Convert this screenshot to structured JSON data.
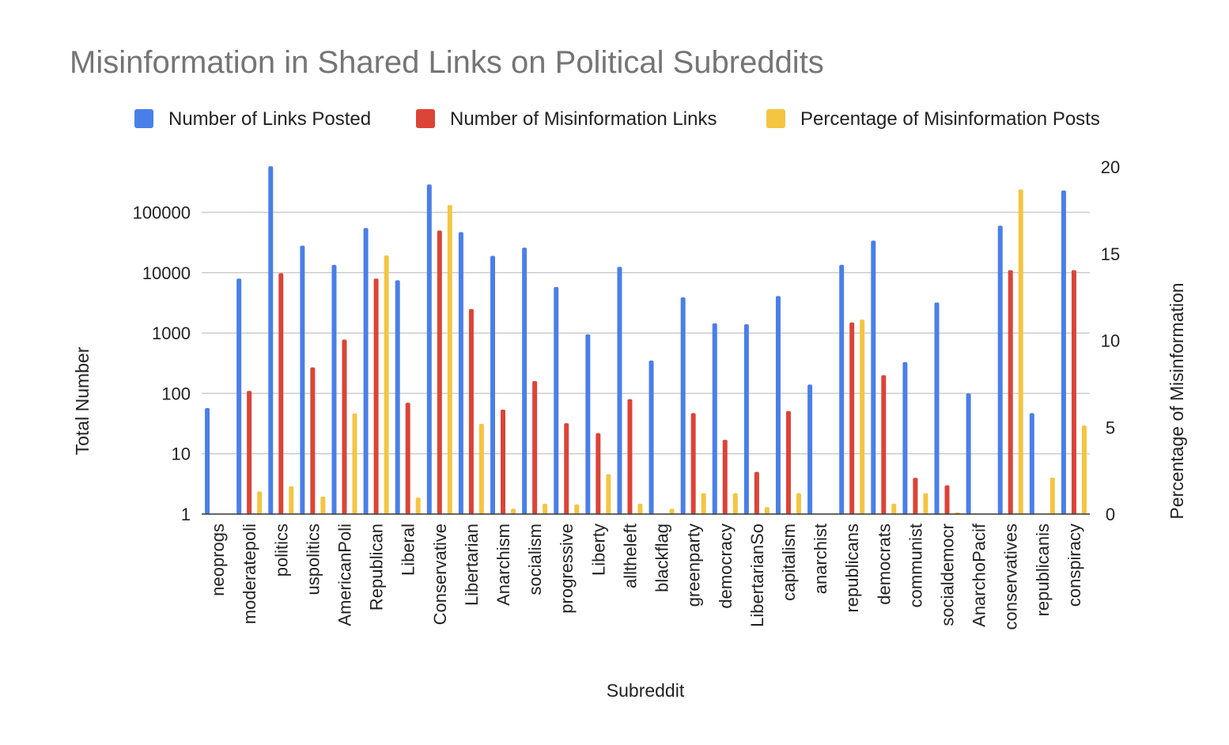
{
  "chart_data": {
    "type": "bar",
    "title": "Misinformation in Shared Links on Political Subreddits",
    "xlabel": "Subreddit",
    "ylabel": "Total Number",
    "y2label": "Percentage of Misinformation",
    "legend_position": "top",
    "grid": true,
    "y_scale": "log",
    "ylim": [
      1,
      600000
    ],
    "y2lim": [
      0,
      20
    ],
    "y_ticks": [
      "1",
      "10",
      "100",
      "1000",
      "10000",
      "100000"
    ],
    "y2_ticks": [
      "0",
      "5",
      "10",
      "15",
      "20"
    ],
    "categories": [
      "neoprogs",
      "moderatepoli",
      "politics",
      "uspolitics",
      "AmericanPoli",
      "Republican",
      "Liberal",
      "Conservative",
      "Libertarian",
      "Anarchism",
      "socialism",
      "progressive",
      "Liberty",
      "alltheleft",
      "blackflag",
      "greenparty",
      "democracy",
      "LibertarianSo",
      "capitalism",
      "anarchist",
      "republicans",
      "democrats",
      "communist",
      "socialdemocr",
      "AnarchoPacif",
      "conservatives",
      "republicanis",
      "conspiracy"
    ],
    "series": [
      {
        "name": "Number of Links Posted",
        "axis": "left",
        "color": "#4a7fe8",
        "values": [
          57,
          8000,
          580000,
          28000,
          13500,
          55000,
          7500,
          290000,
          47000,
          19000,
          26000,
          5800,
          950,
          12500,
          350,
          3900,
          1450,
          1400,
          4100,
          140,
          13500,
          34000,
          330,
          3200,
          100,
          60000,
          47,
          230000
        ]
      },
      {
        "name": "Number of Misinformation Links",
        "axis": "left",
        "color": "#db4437",
        "values": [
          0,
          110,
          9800,
          270,
          780,
          8000,
          70,
          50000,
          2500,
          54,
          160,
          32,
          22,
          80,
          0,
          47,
          17,
          5,
          51,
          0,
          1500,
          200,
          4,
          3,
          0,
          11000,
          0,
          11000
        ]
      },
      {
        "name": "Percentage of Misinformation Posts",
        "axis": "right",
        "color": "#f4c542",
        "values": [
          0,
          1.3,
          1.6,
          1.0,
          5.8,
          14.9,
          0.95,
          17.8,
          5.2,
          0.3,
          0.6,
          0.55,
          2.3,
          0.6,
          0.3,
          1.2,
          1.2,
          0.4,
          1.2,
          0,
          11.2,
          0.6,
          1.2,
          0.1,
          0,
          18.7,
          2.1,
          5.1
        ]
      }
    ]
  }
}
